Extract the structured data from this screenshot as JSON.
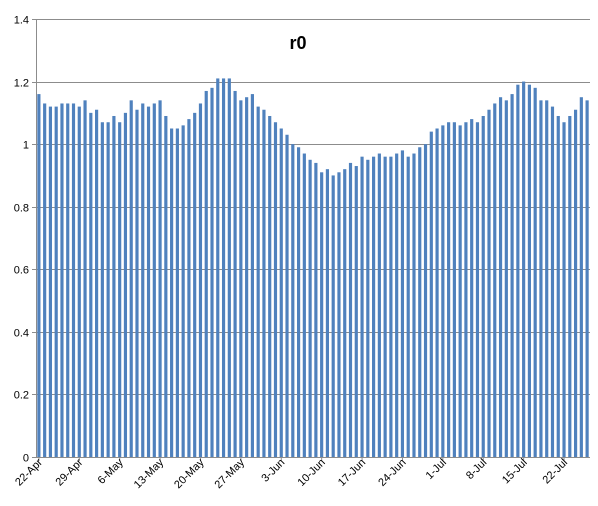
{
  "chart_data": {
    "type": "bar",
    "title": "r0",
    "xlabel": "",
    "ylabel": "",
    "ylim": [
      0,
      1.4
    ],
    "yticks": [
      0,
      0.2,
      0.4,
      0.6,
      0.8,
      1,
      1.2,
      1.4
    ],
    "ytick_labels": [
      "0",
      "0.2",
      "0.4",
      "0.6",
      "0.8",
      "1",
      "1.2",
      "1.4"
    ],
    "grid": "horizontal",
    "legend": "none",
    "bar_color": "#4f81bd",
    "grid_color": "#8c8c8c",
    "start_date": "22-Apr",
    "xtick_labels": [
      "22-Apr",
      "29-Apr",
      "6-May",
      "13-May",
      "20-May",
      "27-May",
      "3-Jun",
      "10-Jun",
      "17-Jun",
      "24-Jun",
      "1-Jul",
      "8-Jul",
      "15-Jul",
      "22-Jul"
    ],
    "values": [
      1.16,
      1.13,
      1.12,
      1.12,
      1.13,
      1.13,
      1.13,
      1.12,
      1.14,
      1.1,
      1.11,
      1.07,
      1.07,
      1.09,
      1.07,
      1.1,
      1.14,
      1.11,
      1.13,
      1.12,
      1.13,
      1.14,
      1.09,
      1.05,
      1.05,
      1.06,
      1.08,
      1.1,
      1.13,
      1.17,
      1.18,
      1.21,
      1.21,
      1.21,
      1.17,
      1.14,
      1.15,
      1.16,
      1.12,
      1.11,
      1.09,
      1.07,
      1.05,
      1.03,
      1.0,
      0.99,
      0.97,
      0.95,
      0.94,
      0.91,
      0.92,
      0.9,
      0.91,
      0.92,
      0.94,
      0.93,
      0.96,
      0.95,
      0.96,
      0.97,
      0.96,
      0.96,
      0.97,
      0.98,
      0.96,
      0.97,
      0.99,
      1.0,
      1.04,
      1.05,
      1.06,
      1.07,
      1.07,
      1.06,
      1.07,
      1.08,
      1.07,
      1.09,
      1.11,
      1.13,
      1.15,
      1.14,
      1.16,
      1.19,
      1.2,
      1.19,
      1.18,
      1.14,
      1.14,
      1.12,
      1.09,
      1.07,
      1.09,
      1.11,
      1.15,
      1.14
    ]
  }
}
